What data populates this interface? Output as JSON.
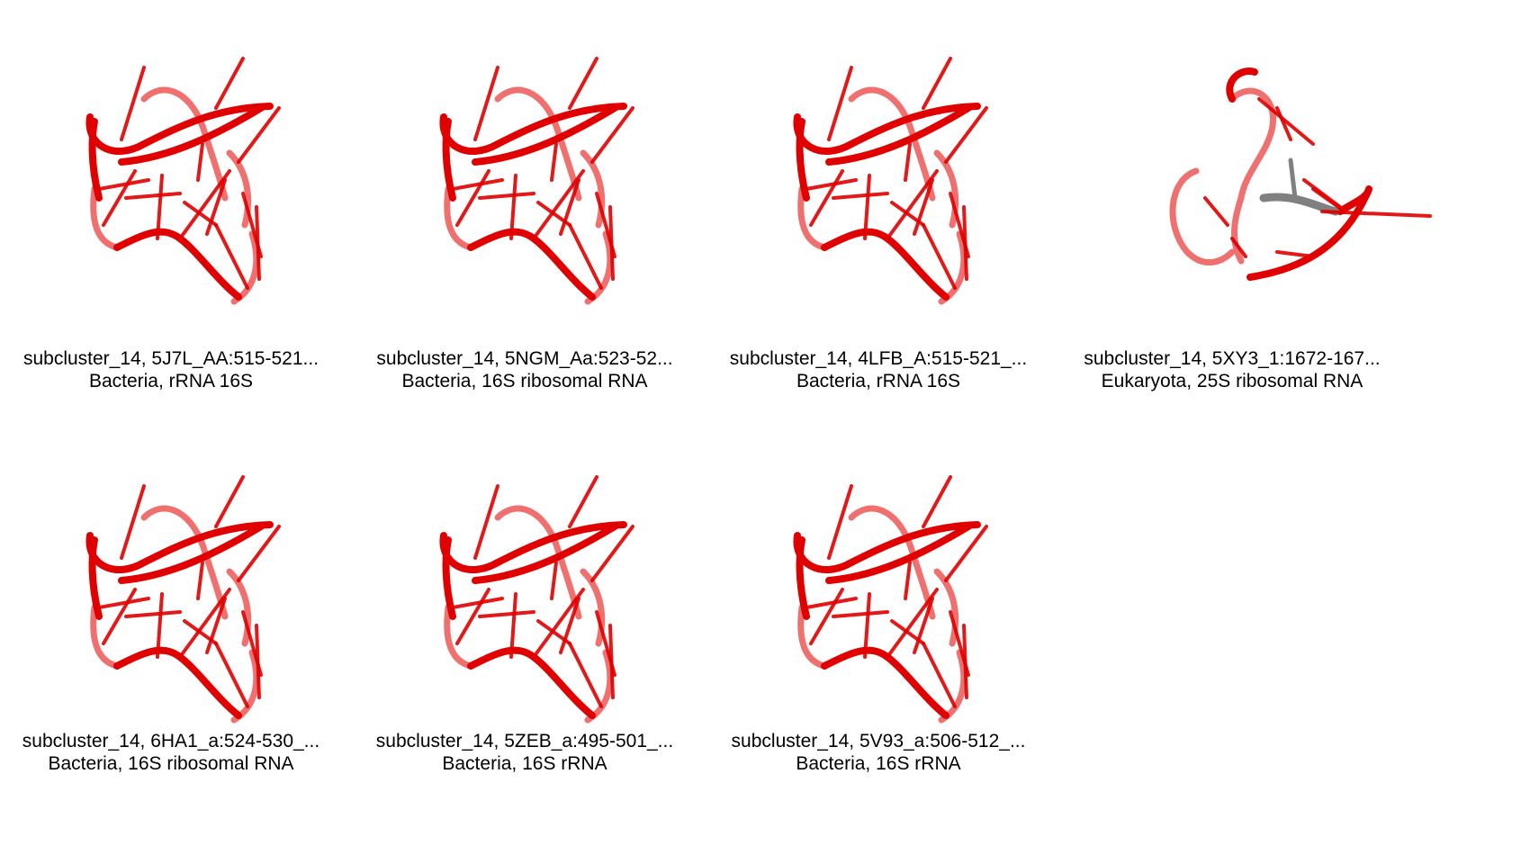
{
  "items": [
    {
      "line1": "subcluster_14, 5J7L_AA:515-521...",
      "line2": "Bacteria, rRNA 16S",
      "variant": "standard"
    },
    {
      "line1": "subcluster_14, 5NGM_Aa:523-52...",
      "line2": "Bacteria, 16S ribosomal RNA",
      "variant": "standard"
    },
    {
      "line1": "subcluster_14, 4LFB_A:515-521_...",
      "line2": "Bacteria, rRNA 16S",
      "variant": "standard"
    },
    {
      "line1": "subcluster_14, 5XY3_1:1672-167...",
      "line2": "Eukaryota, 25S ribosomal RNA",
      "variant": "eukaryota"
    },
    {
      "line1": "subcluster_14, 6HA1_a:524-530_...",
      "line2": "Bacteria, 16S ribosomal RNA",
      "variant": "standard"
    },
    {
      "line1": "subcluster_14, 5ZEB_a:495-501_...",
      "line2": "Bacteria, 16S rRNA",
      "variant": "standard"
    },
    {
      "line1": "subcluster_14, 5V93_a:506-512_...",
      "line2": "Bacteria, 16S rRNA",
      "variant": "standard"
    }
  ],
  "colors": {
    "backbone": "#e00000",
    "backbone_light": "#f07070",
    "backbone_dark": "#b00000",
    "highlight": "#808080"
  }
}
